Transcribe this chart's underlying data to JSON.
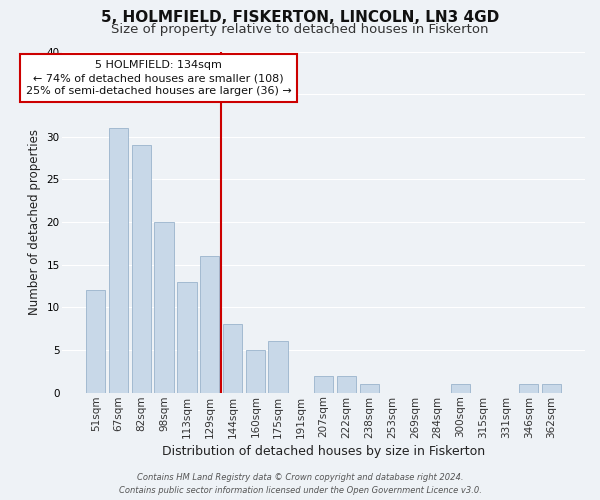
{
  "title": "5, HOLMFIELD, FISKERTON, LINCOLN, LN3 4GD",
  "subtitle": "Size of property relative to detached houses in Fiskerton",
  "xlabel": "Distribution of detached houses by size in Fiskerton",
  "ylabel": "Number of detached properties",
  "bar_labels": [
    "51sqm",
    "67sqm",
    "82sqm",
    "98sqm",
    "113sqm",
    "129sqm",
    "144sqm",
    "160sqm",
    "175sqm",
    "191sqm",
    "207sqm",
    "222sqm",
    "238sqm",
    "253sqm",
    "269sqm",
    "284sqm",
    "300sqm",
    "315sqm",
    "331sqm",
    "346sqm",
    "362sqm"
  ],
  "bar_values": [
    12,
    31,
    29,
    20,
    13,
    16,
    8,
    5,
    6,
    0,
    2,
    2,
    1,
    0,
    0,
    0,
    1,
    0,
    0,
    1,
    1
  ],
  "bar_color": "#c8d8e8",
  "bar_edge_color": "#9ab4cc",
  "highlight_line_index": 5.5,
  "highlight_color": "#cc0000",
  "annotation_title": "5 HOLMFIELD: 134sqm",
  "annotation_line1": "← 74% of detached houses are smaller (108)",
  "annotation_line2": "25% of semi-detached houses are larger (36) →",
  "annotation_box_color": "#ffffff",
  "annotation_box_edge": "#cc0000",
  "ylim": [
    0,
    40
  ],
  "yticks": [
    0,
    5,
    10,
    15,
    20,
    25,
    30,
    35,
    40
  ],
  "footer_line1": "Contains HM Land Registry data © Crown copyright and database right 2024.",
  "footer_line2": "Contains public sector information licensed under the Open Government Licence v3.0.",
  "background_color": "#eef2f6",
  "grid_color": "#ffffff",
  "title_fontsize": 11,
  "subtitle_fontsize": 9.5,
  "xlabel_fontsize": 9,
  "ylabel_fontsize": 8.5,
  "tick_fontsize": 7.5,
  "footer_fontsize": 6,
  "annot_fontsize": 8
}
